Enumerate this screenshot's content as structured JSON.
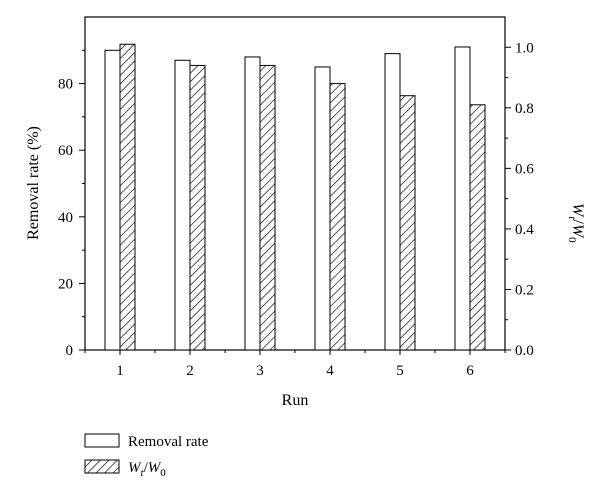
{
  "chart_data": {
    "type": "bar",
    "xlabel": "Run",
    "ylabel_left": "Removal rate (%)",
    "ylabel_right": "W_t/W_0",
    "categories": [
      "1",
      "2",
      "3",
      "4",
      "5",
      "6"
    ],
    "ylim_left": [
      0,
      100
    ],
    "ylim_right": [
      0,
      1.1
    ],
    "yticks_left": [
      "0",
      "20",
      "40",
      "60",
      "80"
    ],
    "yticks_right": [
      "0.0",
      "0.2",
      "0.4",
      "0.6",
      "0.8",
      "1.0"
    ],
    "grid": false,
    "legend_position": "bottom-left",
    "series": [
      {
        "name": "Removal rate",
        "axis": "left",
        "pattern": "open",
        "values": [
          90,
          87,
          88,
          85,
          89,
          91
        ]
      },
      {
        "name": "Wt/W0",
        "axis": "right",
        "pattern": "hatched",
        "values": [
          1.01,
          0.94,
          0.94,
          0.88,
          0.84,
          0.81
        ]
      }
    ]
  },
  "legend": {
    "removal_label": "Removal rate",
    "ratio_main1": "W",
    "ratio_sub1": "t",
    "ratio_slash": "/",
    "ratio_main2": "W",
    "ratio_sub2": "0"
  },
  "axis_labels": {
    "x": "Run",
    "left": "Removal rate (%)",
    "right_main1": "W",
    "right_sub1": "t",
    "right_slash": "/",
    "right_main2": "W",
    "right_sub2": "0"
  },
  "colors": {
    "bar_fill": "#ffffff",
    "stroke": "#000000"
  }
}
